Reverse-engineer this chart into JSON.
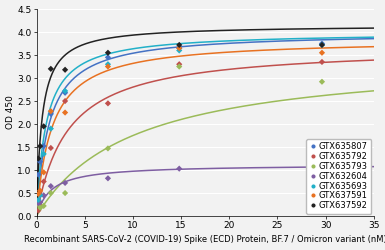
{
  "xlabel": "Recombinant SARS-CoV-2 (COVID-19) Spike (ECD) Protein, BF.7 / Omicron variant (nM)",
  "ylabel": "OD 450",
  "xlim": [
    0,
    35
  ],
  "ylim": [
    0,
    4.5
  ],
  "xticks": [
    0,
    5,
    10,
    15,
    20,
    25,
    30,
    35
  ],
  "yticks": [
    0,
    0.5,
    1.0,
    1.5,
    2.0,
    2.5,
    3.0,
    3.5,
    4.0,
    4.5
  ],
  "series": [
    {
      "label": "GTX635807",
      "color": "#4472C4",
      "scatter_x": [
        0.18,
        0.37,
        0.74,
        1.48,
        2.96,
        7.41,
        14.81,
        29.63
      ],
      "scatter_y": [
        0.9,
        1.18,
        1.52,
        2.22,
        2.68,
        3.45,
        3.65,
        3.75
      ],
      "Bmax": 4.0,
      "Kd": 1.3
    },
    {
      "label": "GTX635792",
      "color": "#C0504D",
      "scatter_x": [
        0.18,
        0.37,
        0.74,
        1.48,
        2.96,
        7.41,
        14.81,
        29.63
      ],
      "scatter_y": [
        0.12,
        0.22,
        0.75,
        1.48,
        2.5,
        2.45,
        3.3,
        3.35
      ],
      "Bmax": 3.7,
      "Kd": 3.2
    },
    {
      "label": "GTX635793",
      "color": "#9BBB59",
      "scatter_x": [
        0.18,
        0.37,
        0.74,
        1.48,
        2.96,
        7.41,
        14.81,
        29.63
      ],
      "scatter_y": [
        0.25,
        0.18,
        0.22,
        0.5,
        0.5,
        1.47,
        3.25,
        2.92
      ],
      "Bmax": 3.5,
      "Kd": 10.0
    },
    {
      "label": "GTX632604",
      "color": "#7E5EA2",
      "scatter_x": [
        0.18,
        0.37,
        0.74,
        1.48,
        2.96,
        7.41,
        14.81,
        29.63
      ],
      "scatter_y": [
        0.28,
        0.3,
        0.45,
        0.65,
        0.72,
        0.82,
        1.03,
        1.05
      ],
      "Bmax": 1.12,
      "Kd": 1.5
    },
    {
      "label": "GTX635693",
      "color": "#22B0C8",
      "scatter_x": [
        0.18,
        0.37,
        0.74,
        1.48,
        2.96,
        7.41,
        14.81,
        29.63
      ],
      "scatter_y": [
        0.35,
        0.45,
        1.35,
        1.9,
        2.72,
        3.3,
        3.6,
        3.72
      ],
      "Bmax": 4.0,
      "Kd": 1.0
    },
    {
      "label": "GTX637591",
      "color": "#E87222",
      "scatter_x": [
        0.18,
        0.37,
        0.74,
        1.48,
        2.96,
        7.41,
        14.81,
        29.63
      ],
      "scatter_y": [
        0.48,
        0.55,
        0.95,
        2.28,
        2.25,
        3.25,
        3.65,
        3.55
      ],
      "Bmax": 3.85,
      "Kd": 1.6
    },
    {
      "label": "GTX637592",
      "color": "#222222",
      "scatter_x": [
        0.18,
        0.37,
        0.74,
        1.48,
        2.96,
        7.41,
        14.81,
        29.63
      ],
      "scatter_y": [
        1.25,
        1.52,
        1.95,
        3.2,
        3.18,
        3.55,
        3.72,
        3.72
      ],
      "Bmax": 4.15,
      "Kd": 0.55
    }
  ],
  "background_color": "#F2F2F2",
  "plot_bg_color": "#F2F2F2",
  "grid_color": "#FFFFFF",
  "legend_fontsize": 6.0,
  "axis_fontsize": 6.5,
  "tick_fontsize": 6.5,
  "xlabel_fontsize": 6.0
}
